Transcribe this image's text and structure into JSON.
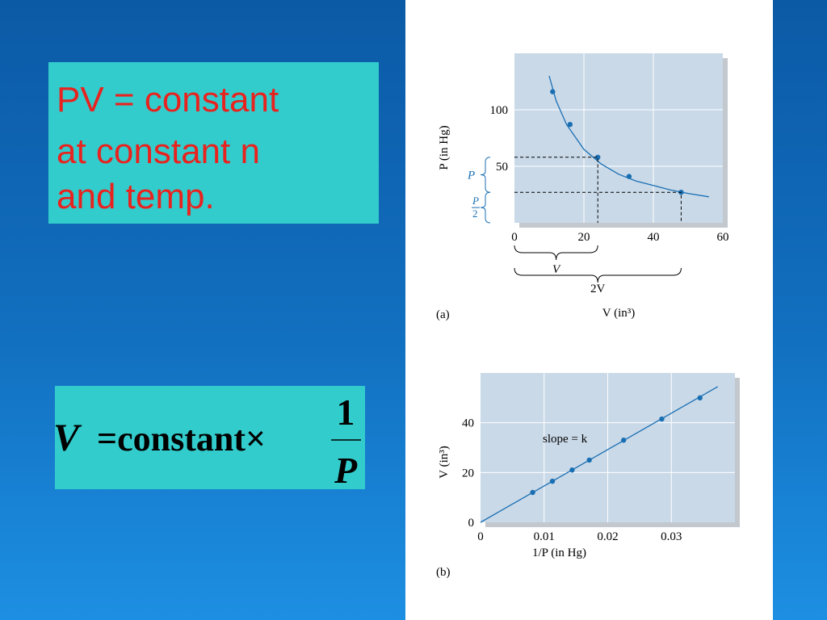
{
  "slide": {
    "statement": [
      "PV = constant",
      "at constant n",
      "and temp."
    ],
    "formula": {
      "left": "V",
      "middle": "=constant×",
      "numerator": "1",
      "denominator": "P"
    }
  },
  "chart_data": [
    {
      "type": "scatter",
      "panel_label": "(a)",
      "x_label": "V (in³)",
      "y_label": "P (in Hg)",
      "xlim": [
        0,
        60
      ],
      "ylim": [
        0,
        150
      ],
      "xticks": [
        0,
        20,
        40,
        60
      ],
      "yticks": [
        50,
        100
      ],
      "grid": true,
      "color": "#1a6fb3",
      "background": "#c9d9e8",
      "points": {
        "x": [
          11,
          16,
          24,
          33,
          48
        ],
        "y": [
          116,
          87,
          58,
          41,
          27
        ]
      },
      "curve": {
        "x": [
          10,
          12,
          15,
          20,
          25,
          30,
          35,
          40,
          45,
          50,
          56
        ],
        "y": [
          130,
          108,
          87,
          65,
          52,
          43,
          37,
          33,
          29,
          26,
          23
        ]
      },
      "annotations": {
        "pressure": "P",
        "half_pressure": [
          "P",
          "2"
        ],
        "volume": "V",
        "double_volume": "2V"
      }
    },
    {
      "type": "scatter",
      "panel_label": "(b)",
      "x_label": "1/P (in Hg)",
      "y_label": "V (in³)",
      "xlim": [
        0,
        0.04
      ],
      "ylim": [
        0,
        60
      ],
      "xticks": [
        0,
        0.01,
        0.02,
        0.03
      ],
      "yticks": [
        0,
        20,
        40
      ],
      "grid": true,
      "color": "#1a6fb3",
      "background": "#c9d9e8",
      "points": {
        "x": [
          0.0082,
          0.0113,
          0.0144,
          0.0171,
          0.0225,
          0.0285,
          0.0345
        ],
        "y": [
          12,
          16.5,
          21,
          25,
          33,
          41.5,
          50
        ]
      },
      "curve": {
        "x": [
          0,
          0.0373
        ],
        "y": [
          0,
          54.5
        ]
      },
      "annotations": {
        "slope": "slope = k"
      }
    }
  ]
}
